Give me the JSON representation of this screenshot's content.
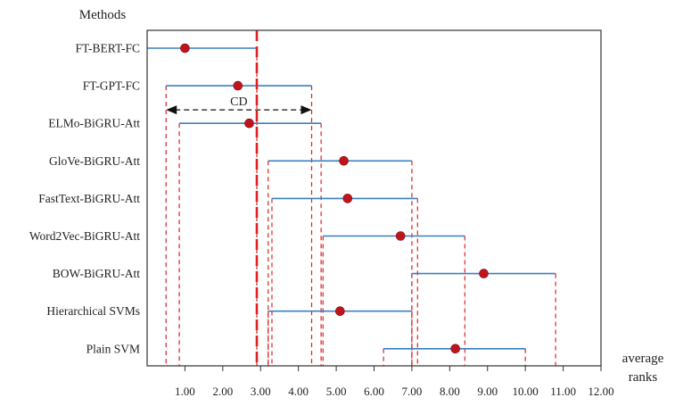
{
  "chart_data": {
    "type": "critical-difference",
    "title": "",
    "ylabel": "Methods",
    "xlabel": "average ranks",
    "xlim": [
      0,
      12
    ],
    "xticks": [
      1,
      2,
      3,
      4,
      5,
      6,
      7,
      8,
      9,
      10,
      11,
      12
    ],
    "xtick_labels": [
      "1.00",
      "2.00",
      "3.00",
      "4.00",
      "5.00",
      "6.00",
      "7.00",
      "8.00",
      "9.00",
      "10.00",
      "11.00",
      "12.00"
    ],
    "cd_label": "CD",
    "cd_interval": [
      0.5,
      4.35
    ],
    "reference_rank": 2.9,
    "methods": [
      {
        "name": "FT-BERT-FC",
        "rank": 1.0,
        "low": 0.0,
        "high": 2.9
      },
      {
        "name": "FT-GPT-FC",
        "rank": 2.4,
        "low": 0.5,
        "high": 4.35
      },
      {
        "name": "ELMo-BiGRU-Att",
        "rank": 2.7,
        "low": 0.85,
        "high": 4.6
      },
      {
        "name": "GloVe-BiGRU-Att",
        "rank": 5.2,
        "low": 3.2,
        "high": 7.0
      },
      {
        "name": "FastText-BiGRU-Att",
        "rank": 5.3,
        "low": 3.3,
        "high": 7.15
      },
      {
        "name": "Word2Vec-BiGRU-Att",
        "rank": 6.7,
        "low": 4.65,
        "high": 8.4
      },
      {
        "name": "BOW-BiGRU-Att",
        "rank": 8.9,
        "low": 7.0,
        "high": 10.8
      },
      {
        "name": "Hierarchical SVMs",
        "rank": 5.1,
        "low": 3.2,
        "high": 7.0
      },
      {
        "name": "Plain SVM",
        "rank": 8.15,
        "low": 6.25,
        "high": 10.0
      }
    ],
    "colors": {
      "interval": "#3b7fc0",
      "point": "#c0141c",
      "guide": "#e02020",
      "frame": "#333333",
      "cd_arrow": "#111111"
    },
    "grid": false,
    "legend": "none"
  }
}
